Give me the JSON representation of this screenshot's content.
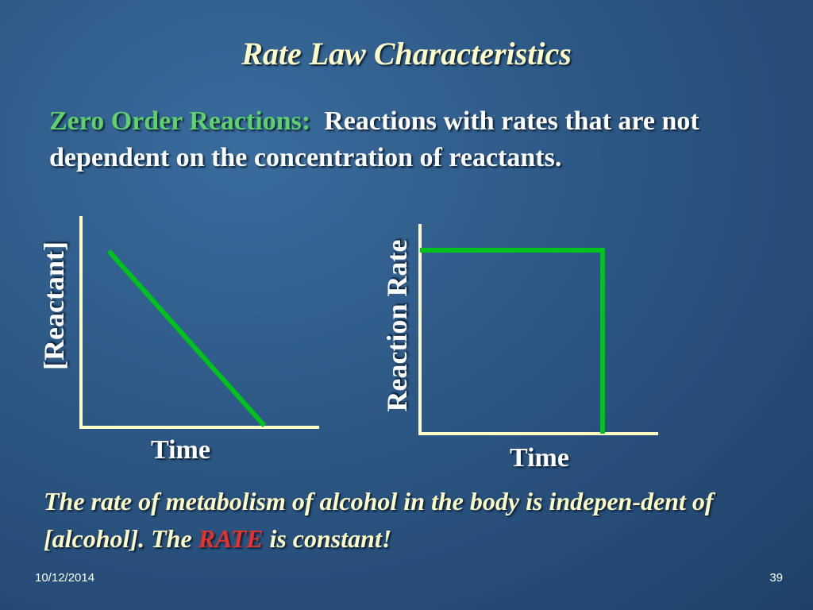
{
  "slide": {
    "title": "Rate Law Characteristics",
    "definition_term": "Zero Order Reactions:",
    "definition_text": "Reactions with rates that are not dependent on the concentration of reactants.",
    "statement_part1": "The rate of metabolism of alcohol in the body is indepen-dent of [alcohol].  The ",
    "statement_emphasis": "RATE",
    "statement_part2": " is constant!",
    "footer_date": "10/12/2014",
    "footer_page": "39"
  },
  "graphs": [
    {
      "type": "line",
      "ylabel": "[Reactant]",
      "xlabel": "Time",
      "trend": "decreasing linearly",
      "line_color": "#00c21c",
      "axis_color": "#fffcc6"
    },
    {
      "type": "line",
      "ylabel": "Reaction Rate",
      "xlabel": "Time",
      "trend": "constant, then drops to zero",
      "line_color": "#00c21c",
      "axis_color": "#fffcc6"
    }
  ],
  "colors": {
    "background": "#2c5784",
    "title": "#fffcc6",
    "definition_term": "#5fd16a",
    "body_text": "#ffffff",
    "emphasis": "#e8312a"
  }
}
